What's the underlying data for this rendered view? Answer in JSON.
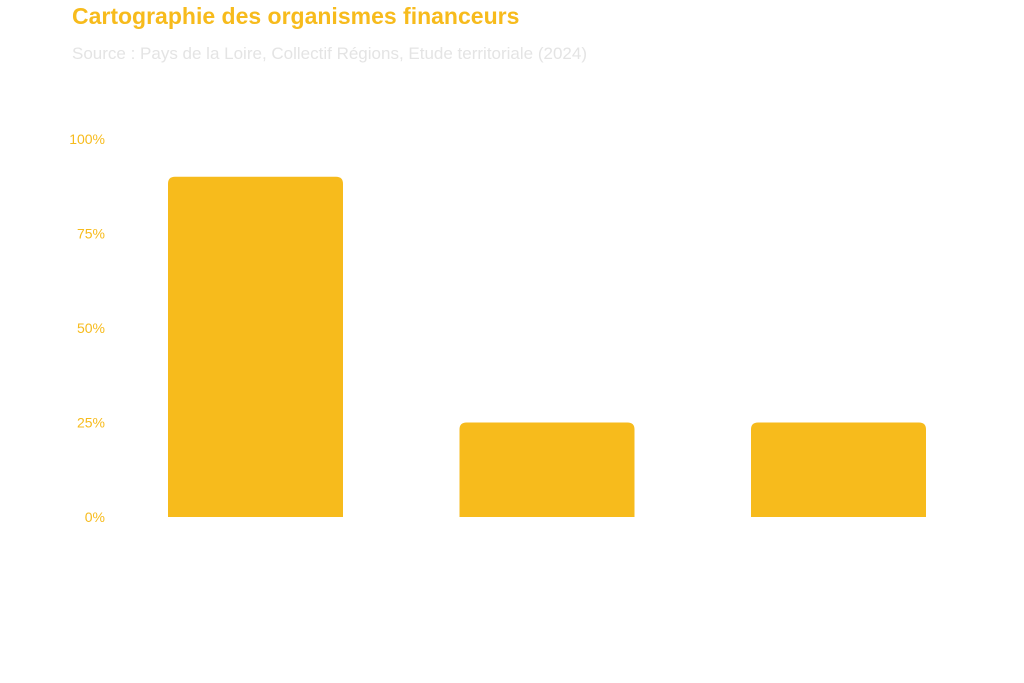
{
  "header": {
    "title": "Cartographie des organismes financeurs",
    "subtitle": "Source : Pays de la Loire, Collectif Régions, Etude territoriale (2024)"
  },
  "colors": {
    "accent": "#f7bb1c",
    "bar": "#f7bb1c",
    "subtitle": "#e4e4e4"
  },
  "chart_data": {
    "type": "bar",
    "title": "Cartographie des organismes financeurs",
    "subtitle": "Source : Pays de la Loire, Collectif Régions, Etude territoriale (2024)",
    "categories": [
      "",
      "",
      ""
    ],
    "values": [
      90,
      25,
      25
    ],
    "ylim": [
      0,
      100
    ],
    "yticks": [
      0,
      25,
      50,
      75,
      100
    ],
    "ytick_labels": [
      "0%",
      "25%",
      "50%",
      "75%",
      "100%"
    ],
    "xlabel": "",
    "ylabel": "",
    "grid": false,
    "legend": "none"
  }
}
